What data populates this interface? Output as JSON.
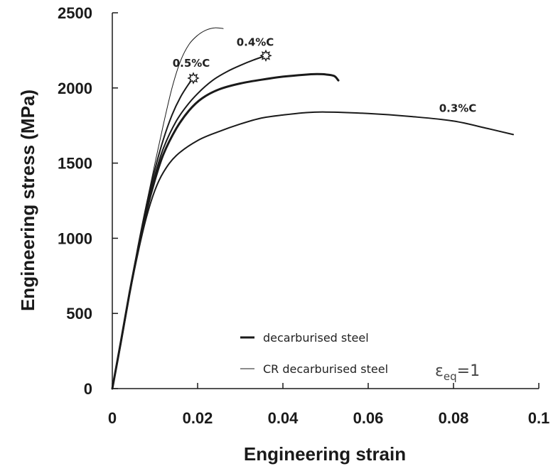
{
  "chart_data": {
    "type": "line",
    "title": "",
    "xlabel": "Engineering strain",
    "ylabel": "Engineering stress  (MPa)",
    "xlim": [
      0,
      0.1
    ],
    "ylim": [
      0,
      2500
    ],
    "xticks": [
      0,
      0.02,
      0.04,
      0.06,
      0.08,
      0.1
    ],
    "xtick_labels": [
      "0",
      "0.02",
      "0.04",
      "0.06",
      "0.08",
      "0.1"
    ],
    "yticks": [
      0,
      500,
      1000,
      1500,
      2000,
      2500
    ],
    "ytick_labels": [
      "0",
      "500",
      "1000",
      "1500",
      "2000",
      "2500"
    ],
    "grid": false,
    "legend_position": "bottom-center",
    "legend": [
      {
        "label": "decarburised steel",
        "style": "thick"
      },
      {
        "label": "CR decarburised steel",
        "style": "thin"
      }
    ],
    "annotation_text": {
      "symbol": "ε",
      "subscript": "eq",
      "suffix": "=1"
    },
    "curve_labels": [
      {
        "text": "0.5%C",
        "x": 0.0185,
        "y": 2140
      },
      {
        "text": "0.4%C",
        "x": 0.0335,
        "y": 2280
      },
      {
        "text": "0.3%C",
        "x": 0.081,
        "y": 1840
      }
    ],
    "markers": [
      {
        "symbol": "star",
        "x": 0.019,
        "y": 2065
      },
      {
        "symbol": "star",
        "x": 0.036,
        "y": 2215
      }
    ],
    "series": [
      {
        "series_type": "CR decarburised steel",
        "width": "thin",
        "x": [
          0,
          0.002,
          0.004,
          0.006,
          0.008,
          0.01,
          0.012,
          0.014,
          0.016,
          0.018,
          0.02,
          0.022,
          0.024,
          0.026
        ],
        "y": [
          0,
          320,
          640,
          940,
          1230,
          1500,
          1760,
          2000,
          2180,
          2290,
          2350,
          2385,
          2400,
          2395
        ]
      },
      {
        "series_type": "0.5%C decarburised steel",
        "width": "medium",
        "x": [
          0,
          0.002,
          0.004,
          0.006,
          0.008,
          0.01,
          0.012,
          0.014,
          0.016,
          0.018,
          0.019
        ],
        "y": [
          0,
          310,
          630,
          940,
          1220,
          1460,
          1660,
          1820,
          1940,
          2030,
          2065
        ]
      },
      {
        "series_type": "0.4%C decarburised steel",
        "width": "medium",
        "x": [
          0,
          0.002,
          0.004,
          0.006,
          0.008,
          0.01,
          0.012,
          0.015,
          0.018,
          0.021,
          0.024,
          0.027,
          0.03,
          0.033,
          0.036
        ],
        "y": [
          0,
          310,
          630,
          930,
          1200,
          1420,
          1600,
          1780,
          1900,
          1990,
          2060,
          2110,
          2150,
          2185,
          2215
        ]
      },
      {
        "series_type": "decarburised steel (unlabelled)",
        "width": "thick",
        "x": [
          0,
          0.002,
          0.004,
          0.006,
          0.008,
          0.01,
          0.012,
          0.015,
          0.018,
          0.021,
          0.025,
          0.03,
          0.035,
          0.04,
          0.045,
          0.048,
          0.05,
          0.052,
          0.053
        ],
        "y": [
          0,
          310,
          630,
          920,
          1180,
          1390,
          1560,
          1730,
          1850,
          1930,
          1990,
          2030,
          2055,
          2075,
          2088,
          2092,
          2090,
          2080,
          2050
        ]
      },
      {
        "series_type": "0.3%C decarburised steel",
        "width": "medium",
        "x": [
          0,
          0.002,
          0.004,
          0.006,
          0.008,
          0.01,
          0.012,
          0.015,
          0.02,
          0.025,
          0.03,
          0.035,
          0.04,
          0.045,
          0.05,
          0.06,
          0.07,
          0.08,
          0.088,
          0.094
        ],
        "y": [
          0,
          300,
          620,
          900,
          1140,
          1320,
          1440,
          1550,
          1650,
          1710,
          1760,
          1800,
          1820,
          1835,
          1840,
          1830,
          1810,
          1780,
          1730,
          1690
        ]
      }
    ]
  },
  "colors": {
    "line": "#1a1a1a",
    "axis": "#1a1a1a",
    "background": "#ffffff"
  }
}
